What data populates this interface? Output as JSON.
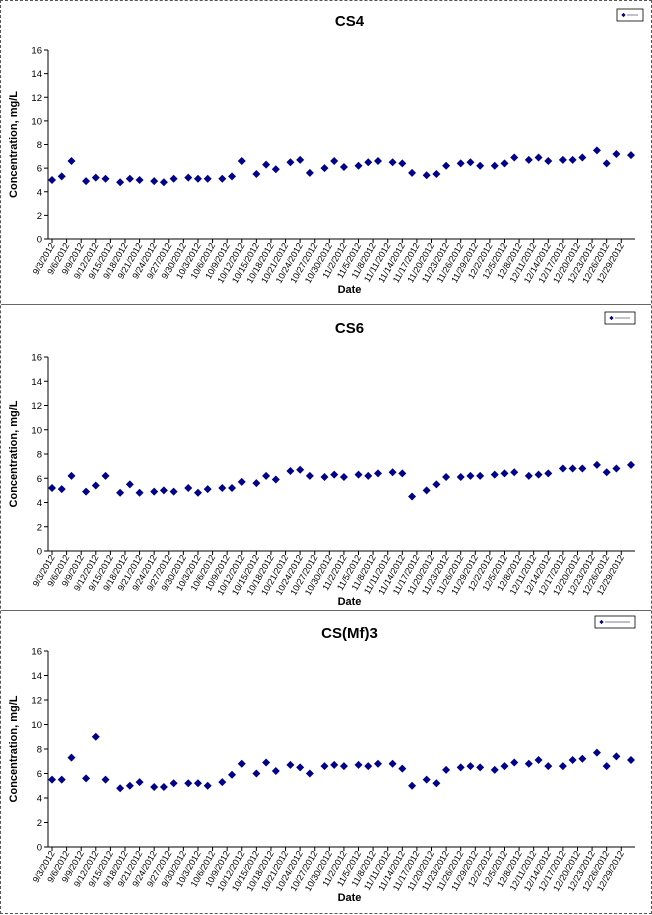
{
  "chart_data": [
    {
      "type": "scatter",
      "title": "CS4",
      "xlabel": "Date",
      "ylabel": "Concentration, mg/L",
      "ylim": [
        0,
        16
      ],
      "yticks": [
        0,
        2,
        4,
        6,
        8,
        10,
        12,
        14,
        16
      ],
      "grid": false,
      "legend_placement": "top-right",
      "xlim": [
        "9/3/2012",
        "12/31/2012"
      ],
      "x_tick_labels": [
        "9/3/2012",
        "9/6/2012",
        "9/9/2012",
        "9/12/2012",
        "9/15/2012",
        "9/18/2012",
        "9/21/2012",
        "9/24/2012",
        "9/27/2012",
        "9/30/2012",
        "10/3/2012",
        "10/6/2012",
        "10/9/2012",
        "10/12/2012",
        "10/15/2012",
        "10/18/2012",
        "10/21/2012",
        "10/24/2012",
        "10/27/2012",
        "10/30/2012",
        "11/2/2012",
        "11/5/2012",
        "11/8/2012",
        "11/11/2012",
        "11/14/2012",
        "11/17/2012",
        "11/20/2012",
        "11/23/2012",
        "11/26/2012",
        "11/29/2012",
        "12/2/2012",
        "12/5/2012",
        "12/8/2012",
        "12/11/2012",
        "12/14/2012",
        "12/17/2012",
        "12/20/2012",
        "12/23/2012",
        "12/26/2012",
        "12/29/2012"
      ],
      "series": [
        {
          "name": "",
          "color": "#00008B",
          "x": [
            "9/3/2012",
            "9/5/2012",
            "9/7/2012",
            "9/10/2012",
            "9/12/2012",
            "9/14/2012",
            "9/17/2012",
            "9/19/2012",
            "9/21/2012",
            "9/24/2012",
            "9/26/2012",
            "9/28/2012",
            "10/1/2012",
            "10/3/2012",
            "10/5/2012",
            "10/8/2012",
            "10/10/2012",
            "10/12/2012",
            "10/15/2012",
            "10/17/2012",
            "10/19/2012",
            "10/22/2012",
            "10/24/2012",
            "10/26/2012",
            "10/29/2012",
            "10/31/2012",
            "11/2/2012",
            "11/5/2012",
            "11/7/2012",
            "11/9/2012",
            "11/12/2012",
            "11/14/2012",
            "11/16/2012",
            "11/19/2012",
            "11/21/2012",
            "11/23/2012",
            "11/26/2012",
            "11/28/2012",
            "11/30/2012",
            "12/3/2012",
            "12/5/2012",
            "12/7/2012",
            "12/10/2012",
            "12/12/2012",
            "12/14/2012",
            "12/17/2012",
            "12/19/2012",
            "12/21/2012",
            "12/24/2012",
            "12/26/2012",
            "12/28/2012",
            "12/31/2012"
          ],
          "values": [
            5.0,
            5.3,
            6.6,
            4.9,
            5.2,
            5.1,
            4.8,
            5.1,
            5.0,
            4.9,
            4.8,
            5.1,
            5.2,
            5.1,
            5.1,
            5.1,
            5.3,
            6.6,
            5.5,
            6.3,
            5.9,
            6.5,
            6.7,
            5.6,
            6.0,
            6.6,
            6.1,
            6.2,
            6.5,
            6.6,
            6.5,
            6.4,
            5.6,
            5.4,
            5.5,
            6.2,
            6.4,
            6.5,
            6.2,
            6.2,
            6.4,
            6.9,
            6.7,
            6.9,
            6.6,
            6.7,
            6.7,
            6.9,
            7.5,
            6.4,
            7.2,
            7.1
          ]
        }
      ]
    },
    {
      "type": "scatter",
      "title": "CS6",
      "xlabel": "Date",
      "ylabel": "Concentration, mg/L",
      "ylim": [
        0,
        16
      ],
      "yticks": [
        0,
        2,
        4,
        6,
        8,
        10,
        12,
        14,
        16
      ],
      "grid": false,
      "legend_placement": "top-right",
      "xlim": [
        "9/3/2012",
        "12/31/2012"
      ],
      "x_tick_labels": [
        "9/3/2012",
        "9/6/2012",
        "9/9/2012",
        "9/12/2012",
        "9/15/2012",
        "9/18/2012",
        "9/21/2012",
        "9/24/2012",
        "9/27/2012",
        "9/30/2012",
        "10/3/2012",
        "10/6/2012",
        "10/9/2012",
        "10/12/2012",
        "10/15/2012",
        "10/18/2012",
        "10/21/2012",
        "10/24/2012",
        "10/27/2012",
        "10/30/2012",
        "11/2/2012",
        "11/5/2012",
        "11/8/2012",
        "11/11/2012",
        "11/14/2012",
        "11/17/2012",
        "11/20/2012",
        "11/23/2012",
        "11/26/2012",
        "11/29/2012",
        "12/2/2012",
        "12/5/2012",
        "12/8/2012",
        "12/11/2012",
        "12/14/2012",
        "12/17/2012",
        "12/20/2012",
        "12/23/2012",
        "12/26/2012",
        "12/29/2012"
      ],
      "series": [
        {
          "name": "",
          "color": "#00008B",
          "x": [
            "9/3/2012",
            "9/5/2012",
            "9/7/2012",
            "9/10/2012",
            "9/12/2012",
            "9/14/2012",
            "9/17/2012",
            "9/19/2012",
            "9/21/2012",
            "9/24/2012",
            "9/26/2012",
            "9/28/2012",
            "10/1/2012",
            "10/3/2012",
            "10/5/2012",
            "10/8/2012",
            "10/10/2012",
            "10/12/2012",
            "10/15/2012",
            "10/17/2012",
            "10/19/2012",
            "10/22/2012",
            "10/24/2012",
            "10/26/2012",
            "10/29/2012",
            "10/31/2012",
            "11/2/2012",
            "11/5/2012",
            "11/7/2012",
            "11/9/2012",
            "11/12/2012",
            "11/14/2012",
            "11/16/2012",
            "11/19/2012",
            "11/21/2012",
            "11/23/2012",
            "11/26/2012",
            "11/28/2012",
            "11/30/2012",
            "12/3/2012",
            "12/5/2012",
            "12/7/2012",
            "12/10/2012",
            "12/12/2012",
            "12/14/2012",
            "12/17/2012",
            "12/19/2012",
            "12/21/2012",
            "12/24/2012",
            "12/26/2012",
            "12/28/2012",
            "12/31/2012"
          ],
          "values": [
            5.2,
            5.1,
            6.2,
            4.9,
            5.4,
            6.2,
            4.8,
            5.5,
            4.8,
            4.9,
            5.0,
            4.9,
            5.2,
            4.8,
            5.1,
            5.2,
            5.2,
            5.7,
            5.6,
            6.2,
            5.9,
            6.6,
            6.7,
            6.2,
            6.1,
            6.3,
            6.1,
            6.3,
            6.2,
            6.4,
            6.5,
            6.4,
            4.5,
            5.0,
            5.5,
            6.1,
            6.1,
            6.2,
            6.2,
            6.3,
            6.4,
            6.5,
            6.2,
            6.3,
            6.4,
            6.8,
            6.8,
            6.8,
            7.1,
            6.5,
            6.8,
            7.1
          ]
        }
      ]
    },
    {
      "type": "scatter",
      "title": "CS(Mf)3",
      "xlabel": "Date",
      "ylabel": "Concentration, mg/L",
      "ylim": [
        0,
        16
      ],
      "yticks": [
        0,
        2,
        4,
        6,
        8,
        10,
        12,
        14,
        16
      ],
      "grid": false,
      "legend_placement": "top-right",
      "xlim": [
        "9/3/2012",
        "12/31/2012"
      ],
      "x_tick_labels": [
        "9/3/2012",
        "9/6/2012",
        "9/9/2012",
        "9/12/2012",
        "9/15/2012",
        "9/18/2012",
        "9/21/2012",
        "9/24/2012",
        "9/27/2012",
        "9/30/2012",
        "10/3/2012",
        "10/6/2012",
        "10/9/2012",
        "10/12/2012",
        "10/15/2012",
        "10/18/2012",
        "10/21/2012",
        "10/24/2012",
        "10/27/2012",
        "10/30/2012",
        "11/2/2012",
        "11/5/2012",
        "11/8/2012",
        "11/11/2012",
        "11/14/2012",
        "11/17/2012",
        "11/20/2012",
        "11/23/2012",
        "11/26/2012",
        "11/29/2012",
        "12/2/2012",
        "12/5/2012",
        "12/8/2012",
        "12/11/2012",
        "12/14/2012",
        "12/17/2012",
        "12/20/2012",
        "12/23/2012",
        "12/26/2012",
        "12/29/2012"
      ],
      "series": [
        {
          "name": "",
          "color": "#00008B",
          "x": [
            "9/3/2012",
            "9/5/2012",
            "9/7/2012",
            "9/10/2012",
            "9/12/2012",
            "9/14/2012",
            "9/17/2012",
            "9/19/2012",
            "9/21/2012",
            "9/24/2012",
            "9/26/2012",
            "9/28/2012",
            "10/1/2012",
            "10/3/2012",
            "10/5/2012",
            "10/8/2012",
            "10/10/2012",
            "10/12/2012",
            "10/15/2012",
            "10/17/2012",
            "10/19/2012",
            "10/22/2012",
            "10/24/2012",
            "10/26/2012",
            "10/29/2012",
            "10/31/2012",
            "11/2/2012",
            "11/5/2012",
            "11/7/2012",
            "11/9/2012",
            "11/12/2012",
            "11/14/2012",
            "11/16/2012",
            "11/19/2012",
            "11/21/2012",
            "11/23/2012",
            "11/26/2012",
            "11/28/2012",
            "11/30/2012",
            "12/3/2012",
            "12/5/2012",
            "12/7/2012",
            "12/10/2012",
            "12/12/2012",
            "12/14/2012",
            "12/17/2012",
            "12/19/2012",
            "12/21/2012",
            "12/24/2012",
            "12/26/2012",
            "12/28/2012",
            "12/31/2012"
          ],
          "values": [
            5.5,
            5.5,
            7.3,
            5.6,
            9.0,
            5.5,
            4.8,
            5.0,
            5.3,
            4.9,
            4.9,
            5.2,
            5.2,
            5.2,
            5.0,
            5.3,
            5.9,
            6.8,
            6.0,
            6.9,
            6.2,
            6.7,
            6.5,
            6.0,
            6.6,
            6.7,
            6.6,
            6.7,
            6.6,
            6.8,
            6.8,
            6.4,
            5.0,
            5.5,
            5.2,
            6.3,
            6.5,
            6.6,
            6.5,
            6.3,
            6.6,
            6.9,
            6.8,
            7.1,
            6.6,
            6.6,
            7.1,
            7.2,
            7.7,
            6.6,
            7.4,
            7.1
          ]
        }
      ]
    }
  ]
}
